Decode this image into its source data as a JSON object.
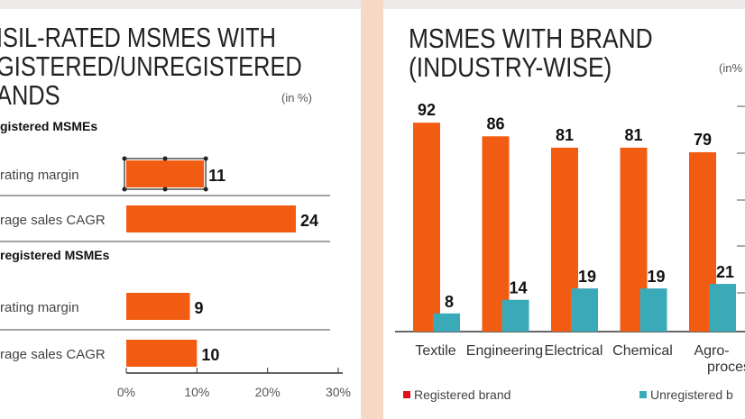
{
  "colors": {
    "registered": "#f25c12",
    "unregistered": "#3aa9b8",
    "legend_registered": "#e0101b",
    "axis": "#333"
  },
  "chart_data": [
    {
      "type": "bar",
      "orientation": "horizontal",
      "title_lines": [
        "ISIL-RATED MSMES WITH",
        "GISTERED/UNREGISTERED",
        "ANDS"
      ],
      "unit": "(in %)",
      "groups": [
        {
          "name": "gistered MSMEs",
          "items": [
            {
              "label": "rating margin",
              "value": 11
            },
            {
              "label": "rage sales CAGR",
              "value": 24
            }
          ]
        },
        {
          "name": "registered MSMEs",
          "items": [
            {
              "label": "rating margin",
              "value": 9
            },
            {
              "label": "rage sales CAGR",
              "value": 10
            }
          ]
        }
      ],
      "xlim": [
        0,
        30
      ],
      "xticks": [
        "0%",
        "10%",
        "20%",
        "30%"
      ]
    },
    {
      "type": "bar",
      "title_lines": [
        "MSMES WITH BRAND",
        "(INDUSTRY-WISE)"
      ],
      "unit": "(in%",
      "categories": [
        "Textile",
        "Engineering",
        "Electrical",
        "Chemical",
        "Agro-"
      ],
      "category_line2": [
        "",
        "",
        "",
        "",
        "proces"
      ],
      "series": [
        {
          "name": "Registered brand",
          "values": [
            92,
            86,
            81,
            81,
            79
          ]
        },
        {
          "name": "Unregistered b",
          "values": [
            8,
            14,
            19,
            19,
            21
          ]
        }
      ],
      "ylim": [
        0,
        100
      ]
    }
  ]
}
